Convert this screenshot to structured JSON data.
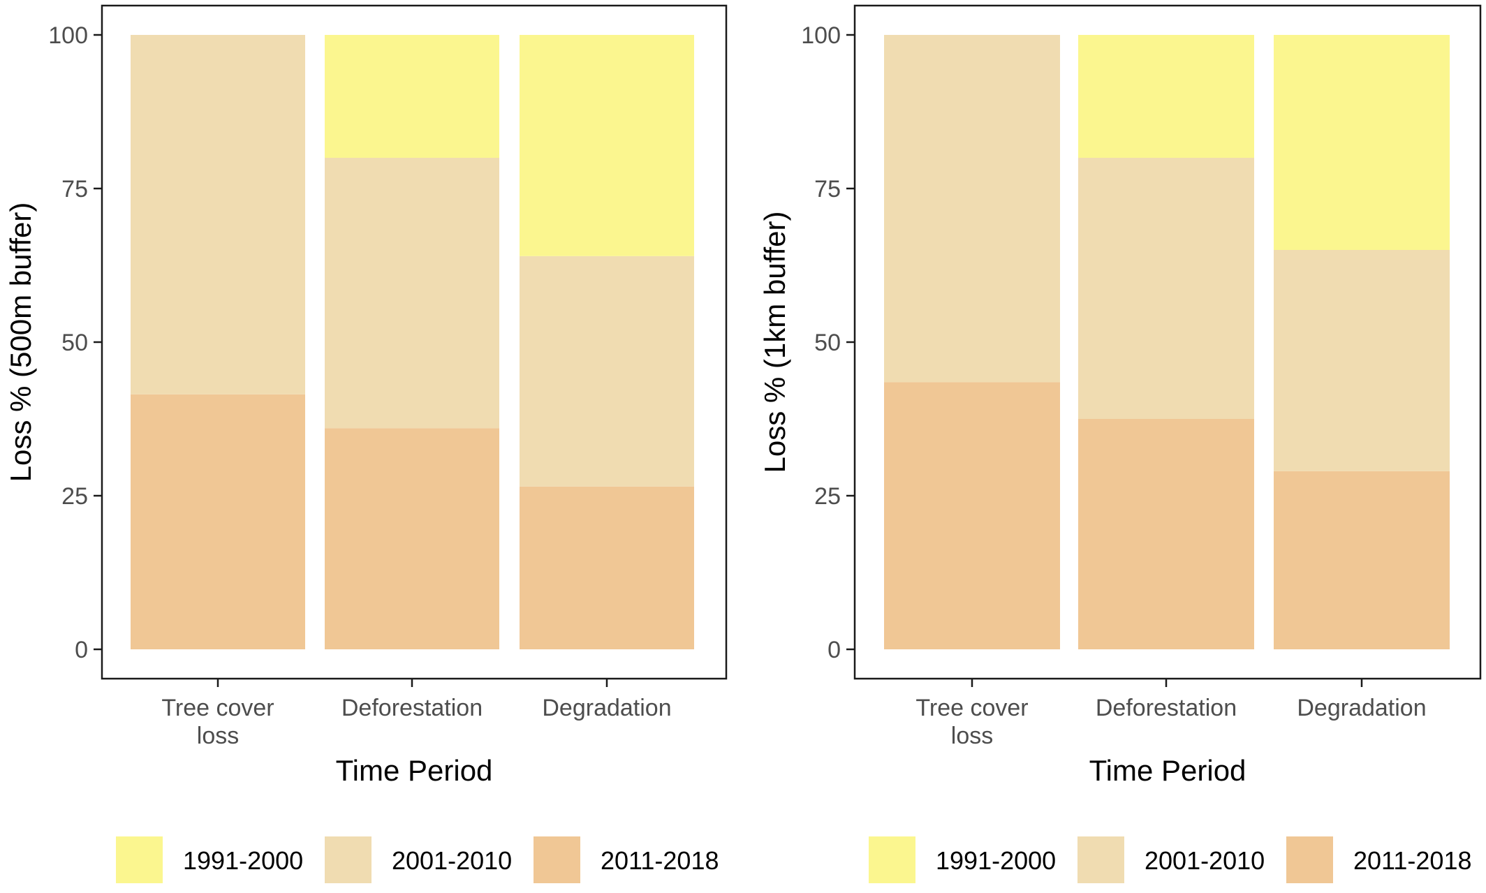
{
  "colors": {
    "1991-2000": "#fbf68f",
    "2001-2010": "#f0dcb1",
    "2011-2018": "#f0c795",
    "frame": "#1a1a1a",
    "tick_text": "#4d4d4d"
  },
  "chart_data": [
    {
      "type": "bar",
      "stacked": true,
      "title": "",
      "xlabel": "Time Period",
      "ylabel": "Loss % (500m buffer)",
      "ylim": [
        0,
        100
      ],
      "yticks": [
        0,
        25,
        50,
        75,
        100
      ],
      "categories": [
        "Tree cover\nloss",
        "Deforestation",
        "Degradation"
      ],
      "grid": false,
      "legend": "bottom",
      "series": [
        {
          "name": "2011-2018",
          "values": [
            41.5,
            36,
            26.5
          ]
        },
        {
          "name": "2001-2010",
          "values": [
            58.5,
            44,
            37.5
          ]
        },
        {
          "name": "1991-2000",
          "values": [
            0,
            20,
            36
          ]
        }
      ]
    },
    {
      "type": "bar",
      "stacked": true,
      "title": "",
      "xlabel": "Time Period",
      "ylabel": "Loss % (1km buffer)",
      "ylim": [
        0,
        100
      ],
      "yticks": [
        0,
        25,
        50,
        75,
        100
      ],
      "categories": [
        "Tree cover\nloss",
        "Deforestation",
        "Degradation"
      ],
      "grid": false,
      "legend": "bottom",
      "series": [
        {
          "name": "2011-2018",
          "values": [
            43.5,
            37.5,
            29
          ]
        },
        {
          "name": "2001-2010",
          "values": [
            56.5,
            42.5,
            36
          ]
        },
        {
          "name": "1991-2000",
          "values": [
            0,
            20,
            35
          ]
        }
      ]
    }
  ],
  "legends": [
    {
      "items": [
        "1991-2000",
        "2001-2010",
        "2011-2018"
      ]
    },
    {
      "items": [
        "1991-2000",
        "2001-2010",
        "2011-2018"
      ]
    }
  ]
}
